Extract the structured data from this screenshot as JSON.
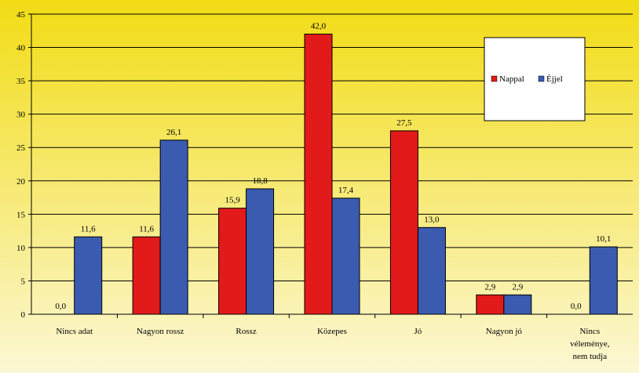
{
  "chart_data": {
    "type": "bar",
    "categories": [
      [
        "Nincs adat"
      ],
      [
        "Nagyon rossz"
      ],
      [
        "Rossz"
      ],
      [
        "Közepes"
      ],
      [
        "Jó"
      ],
      [
        "Nagyon jó"
      ],
      [
        "Nincs",
        "véleménye,",
        "nem tudja"
      ]
    ],
    "series": [
      {
        "name": "Nappal",
        "color": "#e31a1a",
        "values": [
          0.0,
          11.6,
          15.9,
          42.0,
          27.5,
          2.9,
          0.0
        ],
        "labels": [
          "0,0",
          "11,6",
          "15,9",
          "42,0",
          "27,5",
          "2,9",
          "0,0"
        ]
      },
      {
        "name": "Éjjel",
        "color": "#3a5bb0",
        "values": [
          11.6,
          26.1,
          18.8,
          17.4,
          13.0,
          2.9,
          10.1
        ],
        "labels": [
          "11,6",
          "26,1",
          "18,8",
          "17,4",
          "13,0",
          "2,9",
          "10,1"
        ]
      }
    ],
    "ylim": [
      0,
      45
    ],
    "yticks": [
      0,
      5,
      10,
      15,
      20,
      25,
      30,
      35,
      40,
      45
    ],
    "grid": true,
    "legend_position": "top-right",
    "background": {
      "top": "#f2dc14",
      "bottom": "#fcf7d4"
    }
  }
}
